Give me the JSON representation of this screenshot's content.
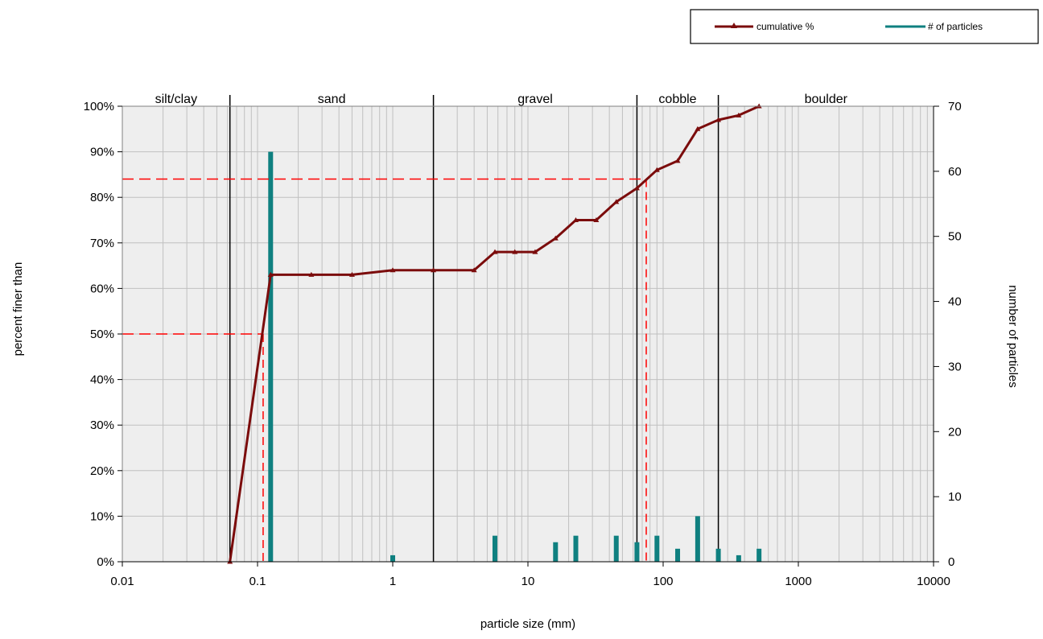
{
  "chart_data": {
    "type": "line",
    "x_scale": "log",
    "xlabel": "particle size (mm)",
    "ylabel_left": "percent finer than",
    "ylabel_right": "number of particles",
    "xlim": [
      0.01,
      10000
    ],
    "ylim_left": [
      0,
      100
    ],
    "ylim_right": [
      0,
      70
    ],
    "x_ticks": [
      "0.01",
      "0.1",
      "1",
      "10",
      "100",
      "1000",
      "10000"
    ],
    "y_left_ticks": [
      "0%",
      "10%",
      "20%",
      "30%",
      "40%",
      "50%",
      "60%",
      "70%",
      "80%",
      "90%",
      "100%"
    ],
    "y_right_ticks": [
      "0",
      "10",
      "20",
      "30",
      "40",
      "50",
      "60",
      "70"
    ],
    "grid": true,
    "legend_position": "top-right",
    "size_classes": [
      {
        "label": "silt/clay",
        "min": 0.01,
        "max": 0.0625
      },
      {
        "label": "sand",
        "min": 0.0625,
        "max": 2
      },
      {
        "label": "gravel",
        "min": 2,
        "max": 64
      },
      {
        "label": "cobble",
        "min": 64,
        "max": 256
      },
      {
        "label": "boulder",
        "min": 256,
        "max": 10000
      }
    ],
    "series": [
      {
        "name": "cumulative %",
        "axis": "left",
        "color": "#7b0c0c",
        "x": [
          0.0625,
          0.125,
          0.25,
          0.5,
          1,
          2,
          4,
          5.7,
          8,
          11.3,
          16,
          22.6,
          32,
          45,
          64,
          90,
          128,
          180,
          256,
          362,
          512
        ],
        "y": [
          0,
          63,
          63,
          63,
          64,
          64,
          64,
          68,
          68,
          68,
          71,
          75,
          75,
          79,
          82,
          86,
          88,
          95,
          97,
          98,
          100
        ]
      },
      {
        "name": "# of particles",
        "axis": "right",
        "type": "bar",
        "color": "#0f8080",
        "x": [
          0.125,
          1,
          5.7,
          16,
          22.6,
          45,
          64,
          90,
          128,
          180,
          256,
          362,
          512
        ],
        "y": [
          63,
          1,
          4,
          3,
          4,
          4,
          3,
          4,
          2,
          7,
          2,
          1,
          2
        ]
      }
    ],
    "reference_lines": [
      {
        "percent": 50,
        "size": 0.11,
        "color": "#ff0000"
      },
      {
        "percent": 84,
        "size": 75,
        "color": "#ff0000"
      }
    ]
  }
}
